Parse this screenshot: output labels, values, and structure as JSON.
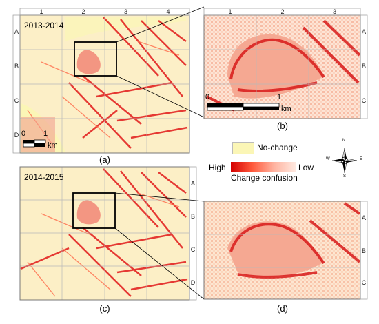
{
  "panels": {
    "a": {
      "caption": "(a)",
      "year": "2013-2014",
      "scale_zero": "0",
      "scale_one": "1",
      "scale_unit": "km"
    },
    "b": {
      "caption": "(b)",
      "scale_zero": "0",
      "scale_one": "1",
      "scale_unit": "km"
    },
    "c": {
      "caption": "(c)",
      "year": "2014-2015"
    },
    "d": {
      "caption": "(d)"
    }
  },
  "grid": {
    "cols_overview": [
      "1",
      "2",
      "3",
      "4"
    ],
    "rows_overview": [
      "A",
      "B",
      "C",
      "D"
    ],
    "cols_zoom": [
      "1",
      "2",
      "3"
    ],
    "rows_zoom": [
      "A",
      "B",
      "C"
    ]
  },
  "legend": {
    "nochange_label": "No-change",
    "high_label": "High",
    "low_label": "Low",
    "confusion_label": "Change confusion",
    "nochange_color": "#fbf6b6",
    "high_color": "#d40000",
    "low_color": "#ffe9e0"
  },
  "compass": {
    "n": "N",
    "s": "S",
    "e": "E",
    "w": "W"
  }
}
